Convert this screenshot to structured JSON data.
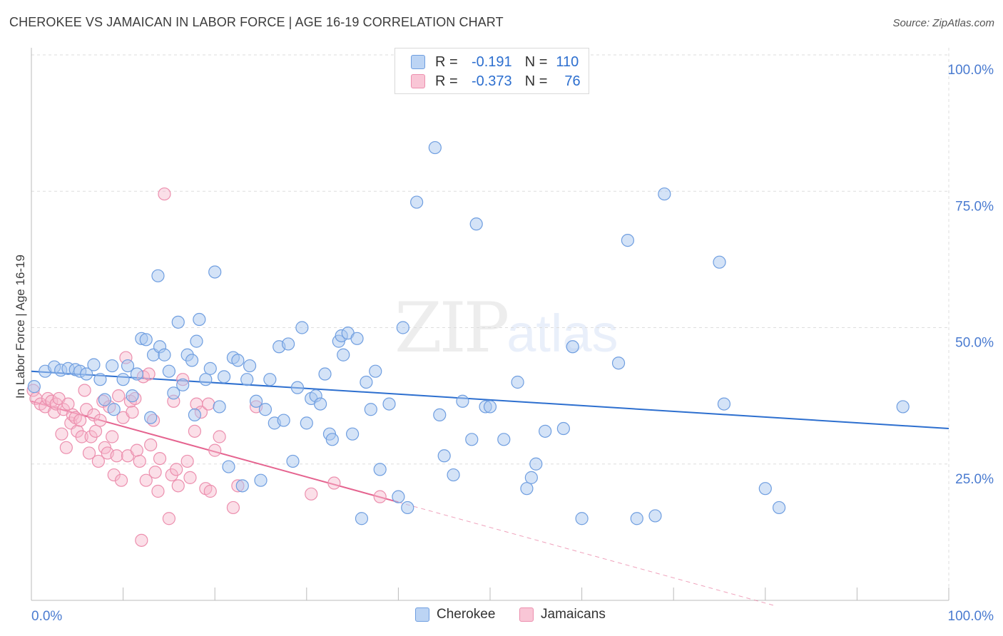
{
  "header": {
    "title": "CHEROKEE VS JAMAICAN IN LABOR FORCE | AGE 16-19 CORRELATION CHART",
    "source": "Source: ZipAtlas.com"
  },
  "watermark": {
    "zip": "ZIP",
    "atlas": "atlas"
  },
  "legend_top": {
    "rows": [
      {
        "r_label": "R =",
        "r_value": "-0.191",
        "n_label": "N =",
        "n_value": "110"
      },
      {
        "r_label": "R =",
        "r_value": "-0.373",
        "n_label": "N =",
        "n_value": "76"
      }
    ]
  },
  "legend_bottom": {
    "items": [
      "Cherokee",
      "Jamaicans"
    ]
  },
  "colors": {
    "cherokee_fill": "#a9c8f0",
    "cherokee_stroke": "#6f9ee0",
    "cherokee_line": "#2d6fcf",
    "jamaican_fill": "#f7b8cd",
    "jamaican_stroke": "#ec8fae",
    "jamaican_line": "#e5638f",
    "tick": "#4a7bd0",
    "grid": "#dddddd"
  },
  "chart_data": {
    "type": "scatter",
    "title": "CHEROKEE VS JAMAICAN IN LABOR FORCE | AGE 16-19 CORRELATION CHART",
    "xlabel": "",
    "ylabel": "In Labor Force | Age 16-19",
    "xlim": [
      0,
      100
    ],
    "ylim": [
      0,
      100
    ],
    "x_tick_labels": [
      "0.0%",
      "100.0%"
    ],
    "y_ticks": [
      25,
      50,
      75,
      100
    ],
    "y_tick_labels": [
      "25.0%",
      "50.0%",
      "75.0%",
      "100.0%"
    ],
    "grid": true,
    "legend_position": "top-center",
    "series": [
      {
        "name": "Cherokee",
        "r": -0.191,
        "n": 110,
        "trend": {
          "x": [
            0,
            100
          ],
          "y": [
            42.0,
            31.5
          ],
          "dashed_extension": false
        },
        "points": [
          [
            0.3,
            39.2
          ],
          [
            1.5,
            42.0
          ],
          [
            2.5,
            42.8
          ],
          [
            3.2,
            42.2
          ],
          [
            4.0,
            42.5
          ],
          [
            4.8,
            42.3
          ],
          [
            5.3,
            42.0
          ],
          [
            6.0,
            41.5
          ],
          [
            6.8,
            43.2
          ],
          [
            7.5,
            40.5
          ],
          [
            8.0,
            36.8
          ],
          [
            8.8,
            43.0
          ],
          [
            9.0,
            35.0
          ],
          [
            10.0,
            40.5
          ],
          [
            10.5,
            43.0
          ],
          [
            11.0,
            37.5
          ],
          [
            11.5,
            41.5
          ],
          [
            12.0,
            48.0
          ],
          [
            12.5,
            47.8
          ],
          [
            13.0,
            33.5
          ],
          [
            13.3,
            45.0
          ],
          [
            13.8,
            59.5
          ],
          [
            14.0,
            46.5
          ],
          [
            14.5,
            45.0
          ],
          [
            15.0,
            42.0
          ],
          [
            15.5,
            38.0
          ],
          [
            16.0,
            51.0
          ],
          [
            16.5,
            39.5
          ],
          [
            17.0,
            45.0
          ],
          [
            17.5,
            44.0
          ],
          [
            17.8,
            34.0
          ],
          [
            18.0,
            47.5
          ],
          [
            18.3,
            51.5
          ],
          [
            19.0,
            40.5
          ],
          [
            19.5,
            42.5
          ],
          [
            20.0,
            60.2
          ],
          [
            20.5,
            35.5
          ],
          [
            21.0,
            41.0
          ],
          [
            21.5,
            24.5
          ],
          [
            22.0,
            44.5
          ],
          [
            22.5,
            44.0
          ],
          [
            23.0,
            21.0
          ],
          [
            23.5,
            40.5
          ],
          [
            23.8,
            43.0
          ],
          [
            24.5,
            36.5
          ],
          [
            25.0,
            22.0
          ],
          [
            25.5,
            35.0
          ],
          [
            26.0,
            40.5
          ],
          [
            26.5,
            32.5
          ],
          [
            27.0,
            46.5
          ],
          [
            27.5,
            33.0
          ],
          [
            28.0,
            47.0
          ],
          [
            28.5,
            25.5
          ],
          [
            29.0,
            39.0
          ],
          [
            29.5,
            50.0
          ],
          [
            30.0,
            32.5
          ],
          [
            30.5,
            37.0
          ],
          [
            31.0,
            37.5
          ],
          [
            31.5,
            36.0
          ],
          [
            32.0,
            41.5
          ],
          [
            32.5,
            30.5
          ],
          [
            32.8,
            29.5
          ],
          [
            33.5,
            47.5
          ],
          [
            33.8,
            48.5
          ],
          [
            34.0,
            45.0
          ],
          [
            34.5,
            49.0
          ],
          [
            35.0,
            30.5
          ],
          [
            35.5,
            48.0
          ],
          [
            36.0,
            15.0
          ],
          [
            36.5,
            40.0
          ],
          [
            37.0,
            35.0
          ],
          [
            37.5,
            42.0
          ],
          [
            38.0,
            24.0
          ],
          [
            39.0,
            36.0
          ],
          [
            40.0,
            19.0
          ],
          [
            40.5,
            50.0
          ],
          [
            41.0,
            17.0
          ],
          [
            42.0,
            73.0
          ],
          [
            44.0,
            83.0
          ],
          [
            44.5,
            34.0
          ],
          [
            45.0,
            26.5
          ],
          [
            46.0,
            23.0
          ],
          [
            47.0,
            36.5
          ],
          [
            48.0,
            29.5
          ],
          [
            48.5,
            69.0
          ],
          [
            49.5,
            35.5
          ],
          [
            50.0,
            35.5
          ],
          [
            51.5,
            29.5
          ],
          [
            53.0,
            40.0
          ],
          [
            54.0,
            20.5
          ],
          [
            54.5,
            22.5
          ],
          [
            55.0,
            25.0
          ],
          [
            56.0,
            31.0
          ],
          [
            58.0,
            31.5
          ],
          [
            59.0,
            46.5
          ],
          [
            60.0,
            15.0
          ],
          [
            64.0,
            43.5
          ],
          [
            65.0,
            66.0
          ],
          [
            66.0,
            15.0
          ],
          [
            68.0,
            15.5
          ],
          [
            69.0,
            74.5
          ],
          [
            75.0,
            62.0
          ],
          [
            75.5,
            36.0
          ],
          [
            80.0,
            20.5
          ],
          [
            81.5,
            17.0
          ],
          [
            95.0,
            35.5
          ]
        ]
      },
      {
        "name": "Jamaicans",
        "r": -0.373,
        "n": 76,
        "trend": {
          "x": [
            0,
            40
          ],
          "y": [
            36.5,
            18.0
          ],
          "dashed_extension": true,
          "dashed_to_x": 81
        },
        "points": [
          [
            0.2,
            38.5
          ],
          [
            0.5,
            37.0
          ],
          [
            1.0,
            36.0
          ],
          [
            1.5,
            35.5
          ],
          [
            1.8,
            37.0
          ],
          [
            2.2,
            36.5
          ],
          [
            2.5,
            34.5
          ],
          [
            2.7,
            36.0
          ],
          [
            3.0,
            37.0
          ],
          [
            3.3,
            30.5
          ],
          [
            3.5,
            35.0
          ],
          [
            3.8,
            28.0
          ],
          [
            4.0,
            36.0
          ],
          [
            4.3,
            32.5
          ],
          [
            4.5,
            34.0
          ],
          [
            4.8,
            33.5
          ],
          [
            5.0,
            31.0
          ],
          [
            5.3,
            33.0
          ],
          [
            5.5,
            30.0
          ],
          [
            5.8,
            38.5
          ],
          [
            6.0,
            35.0
          ],
          [
            6.3,
            27.0
          ],
          [
            6.5,
            30.0
          ],
          [
            6.8,
            34.0
          ],
          [
            7.0,
            31.0
          ],
          [
            7.3,
            25.5
          ],
          [
            7.5,
            33.0
          ],
          [
            7.8,
            36.5
          ],
          [
            8.0,
            28.0
          ],
          [
            8.3,
            27.0
          ],
          [
            8.5,
            35.5
          ],
          [
            8.8,
            30.0
          ],
          [
            9.0,
            23.0
          ],
          [
            9.3,
            26.5
          ],
          [
            9.5,
            37.5
          ],
          [
            9.8,
            22.0
          ],
          [
            10.0,
            33.5
          ],
          [
            10.3,
            44.5
          ],
          [
            10.5,
            26.5
          ],
          [
            10.8,
            36.5
          ],
          [
            11.0,
            34.5
          ],
          [
            11.3,
            37.0
          ],
          [
            11.5,
            27.5
          ],
          [
            11.8,
            25.5
          ],
          [
            12.0,
            11.0
          ],
          [
            12.2,
            41.0
          ],
          [
            12.5,
            22.0
          ],
          [
            12.8,
            41.5
          ],
          [
            13.0,
            28.5
          ],
          [
            13.3,
            33.0
          ],
          [
            13.5,
            23.5
          ],
          [
            13.8,
            20.0
          ],
          [
            14.0,
            26.0
          ],
          [
            14.5,
            74.5
          ],
          [
            15.0,
            15.0
          ],
          [
            15.3,
            23.0
          ],
          [
            15.5,
            36.5
          ],
          [
            15.8,
            24.0
          ],
          [
            16.0,
            21.0
          ],
          [
            16.5,
            40.5
          ],
          [
            17.0,
            25.5
          ],
          [
            17.3,
            22.5
          ],
          [
            17.8,
            31.0
          ],
          [
            18.0,
            36.0
          ],
          [
            18.5,
            34.5
          ],
          [
            19.0,
            20.5
          ],
          [
            19.3,
            36.0
          ],
          [
            19.5,
            20.0
          ],
          [
            20.0,
            27.5
          ],
          [
            20.5,
            30.0
          ],
          [
            22.0,
            17.0
          ],
          [
            22.5,
            21.0
          ],
          [
            24.5,
            35.5
          ],
          [
            30.5,
            19.5
          ],
          [
            33.0,
            21.5
          ],
          [
            38.0,
            19.0
          ]
        ]
      }
    ]
  }
}
